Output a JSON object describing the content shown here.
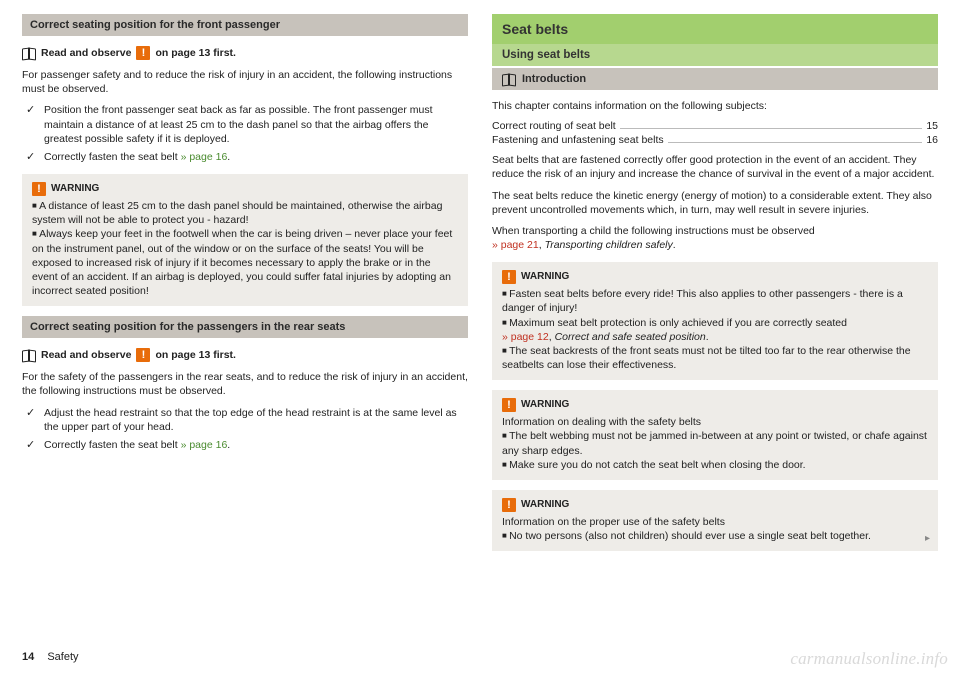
{
  "left": {
    "h1": "Correct seating position for the front passenger",
    "read_prefix": "Read and observe",
    "warn_char": "!",
    "read_suffix": "on page 13 first.",
    "intro": "For passenger safety and to reduce the risk of injury in an accident, the following instructions must be observed.",
    "checks": [
      "Position the front passenger seat back as far as possible. The front passenger must maintain a distance of at least 25 cm to the dash panel so that the airbag offers the greatest possible safety if it is deployed.",
      "Correctly fasten the seat belt "
    ],
    "check2_link": "» page 16",
    "warn_label": "WARNING",
    "warn1_a": "A distance of least 25 cm to the dash panel should be maintained, otherwise the airbag system will not be able to protect you - hazard!",
    "warn1_b": "Always keep your feet in the footwell when the car is being driven – never place your feet on the instrument panel, out of the window or on the surface of the seats! You will be exposed to increased risk of injury if it becomes necessary to apply the brake or in the event of an accident. If an airbag is deployed, you could suffer fatal injuries by adopting an incorrect seated position!",
    "h2": "Correct seating position for the passengers in the rear seats",
    "intro2": "For the safety of the passengers in the rear seats, and to reduce the risk of injury in an accident, the following instructions must be observed.",
    "checks2": [
      "Adjust the head restraint so that the top edge of the head restraint is at the same level as the upper part of your head.",
      "Correctly fasten the seat belt "
    ],
    "check2b_link": "» page 16"
  },
  "right": {
    "title": "Seat belts",
    "sub": "Using seat belts",
    "intro_label": "Introduction",
    "intro_text": "This chapter contains information on the following subjects:",
    "toc": [
      {
        "label": "Correct routing of seat belt",
        "page": "15"
      },
      {
        "label": "Fastening and unfastening seat belts",
        "page": "16"
      }
    ],
    "p1": "Seat belts that are fastened correctly offer good protection in the event of an accident. They reduce the risk of an injury and increase the chance of survival in the event of a major accident.",
    "p2": "The seat belts reduce the kinetic energy (energy of motion) to a considerable extent. They also prevent uncontrolled movements which, in turn, may well result in severe injuries.",
    "p3a": "When transporting a child the following instructions must be observed ",
    "p3_link": "» page 21",
    "p3b": ", ",
    "p3_it": "Transporting children safely",
    "warnA_1": "Fasten seat belts before every ride! This also applies to other passengers - there is a danger of injury!",
    "warnA_2a": "Maximum seat belt protection is only achieved if you are correctly seated ",
    "warnA_2link": "» page 12",
    "warnA_2b": ", ",
    "warnA_2it": "Correct and safe seated position",
    "warnA_3": "The seat backrests of the front seats must not be tilted too far to the rear otherwise the seatbelts can lose their effectiveness.",
    "warnB_h": "Information on dealing with the safety belts",
    "warnB_1": "The belt webbing must not be jammed in-between at any point or twisted, or chafe against any sharp edges.",
    "warnB_2": "Make sure you do not catch the seat belt when closing the door.",
    "warnC_h": "Information on the proper use of the safety belts",
    "warnC_1": "No two persons (also not children) should ever use a single seat belt together."
  },
  "footer": {
    "page": "14",
    "section": "Safety"
  },
  "watermark": "carmanualsonline.info"
}
